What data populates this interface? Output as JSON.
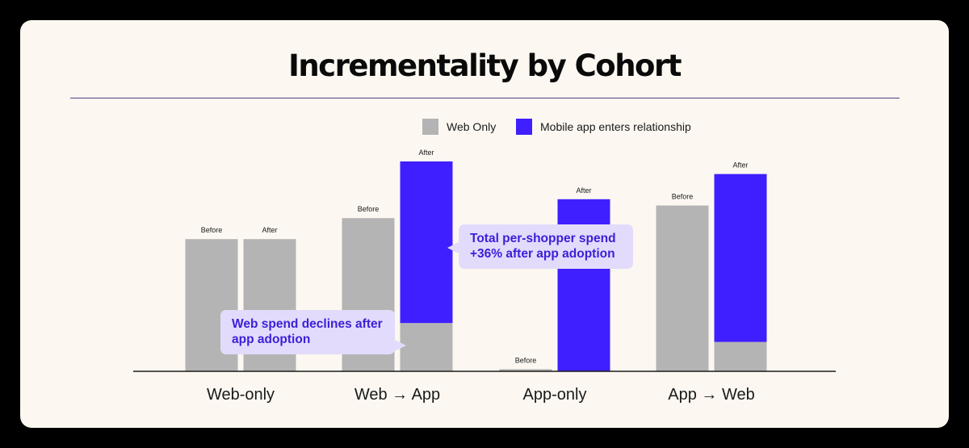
{
  "title": "Incrementality by Cohort",
  "legend": [
    {
      "label": "Web Only",
      "color": "#b4b4b4"
    },
    {
      "label": "Mobile app enters relationship",
      "color": "#3f1fff"
    }
  ],
  "colors": {
    "web": "#b4b4b4",
    "app": "#3f1fff",
    "background": "#fcf8f1",
    "callout_bg": "#e2dbfb",
    "callout_text": "#3b1fd8"
  },
  "chart_data": {
    "type": "bar",
    "stacked": true,
    "title": "Incrementality by Cohort",
    "xlabel": "",
    "ylabel": "",
    "ylim": [
      0,
      100
    ],
    "categories": [
      "Web-only",
      "Web → App",
      "App-only",
      "App → Web"
    ],
    "bar_labels": [
      "Before",
      "After"
    ],
    "series": [
      {
        "name": "Web Only",
        "before": [
          63,
          73,
          1,
          79
        ],
        "after": [
          63,
          23,
          0,
          14
        ]
      },
      {
        "name": "Mobile app enters relationship",
        "before": [
          0,
          0,
          0,
          0
        ],
        "after": [
          0,
          77,
          82,
          80
        ]
      }
    ]
  },
  "annotations": [
    {
      "text": "Total per-shopper spend +36% after app adoption"
    },
    {
      "text": "Web spend declines after app adoption"
    }
  ]
}
